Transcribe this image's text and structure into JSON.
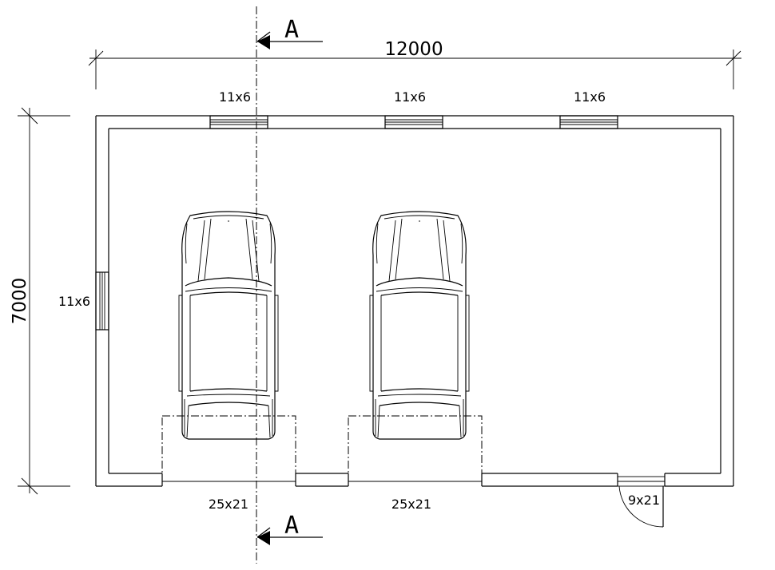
{
  "dimensions": {
    "length": "12000",
    "width": "7000"
  },
  "section_marks": {
    "top": "A",
    "bottom": "A"
  },
  "windows": [
    {
      "label": "11x6",
      "wall": "top"
    },
    {
      "label": "11x6",
      "wall": "top"
    },
    {
      "label": "11x6",
      "wall": "top"
    },
    {
      "label": "11x6",
      "wall": "left"
    }
  ],
  "garage_doors": [
    {
      "label": "25x21"
    },
    {
      "label": "25x21"
    }
  ],
  "entry_door": {
    "label": "9x21"
  },
  "vehicles": [
    {
      "kind": "car"
    },
    {
      "kind": "car"
    }
  ]
}
